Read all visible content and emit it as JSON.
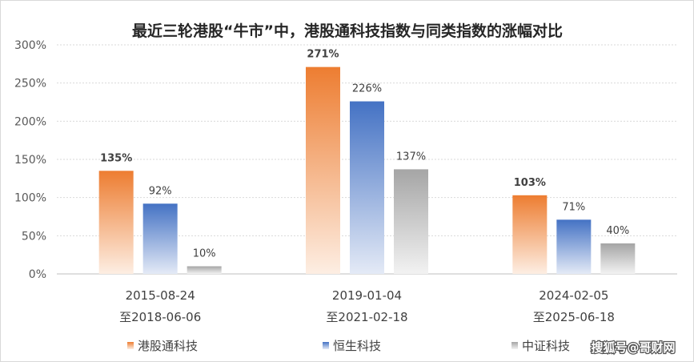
{
  "chart_data": {
    "type": "bar",
    "title": "最近三轮港股“牛市”中，港股通科技指数与同类指数的涨幅对比",
    "categories": [
      [
        "2015-08-24",
        "至2018-06-06"
      ],
      [
        "2019-01-04",
        "至2021-02-18"
      ],
      [
        "2024-02-05",
        "至2025-06-18"
      ]
    ],
    "series": [
      {
        "name": "港股通科技",
        "values": [
          135,
          271,
          103
        ],
        "labels": [
          "135%",
          "271%",
          "103%"
        ],
        "color_top": "#ED7D31",
        "color_bottom": "#FDEEE3",
        "label_color": "#ED7D31"
      },
      {
        "name": "恒生科技",
        "values": [
          92,
          226,
          71
        ],
        "labels": [
          "92%",
          "226%",
          "71%"
        ],
        "color_top": "#4472C4",
        "color_bottom": "#E4EAF6",
        "label_color": "#404040"
      },
      {
        "name": "中证科技",
        "values": [
          10,
          137,
          40
        ],
        "labels": [
          "10%",
          "137%",
          "40%"
        ],
        "color_top": "#A5A5A5",
        "color_bottom": "#F2F2F2",
        "label_color": "#404040"
      }
    ],
    "y_ticks": [
      0,
      50,
      100,
      150,
      200,
      250,
      300
    ],
    "y_tick_labels": [
      "0%",
      "50%",
      "100%",
      "150%",
      "200%",
      "250%",
      "300%"
    ],
    "ylim": [
      0,
      300
    ],
    "grid": true,
    "legend_position": "bottom"
  },
  "watermark": "搜狐号@哥财网"
}
